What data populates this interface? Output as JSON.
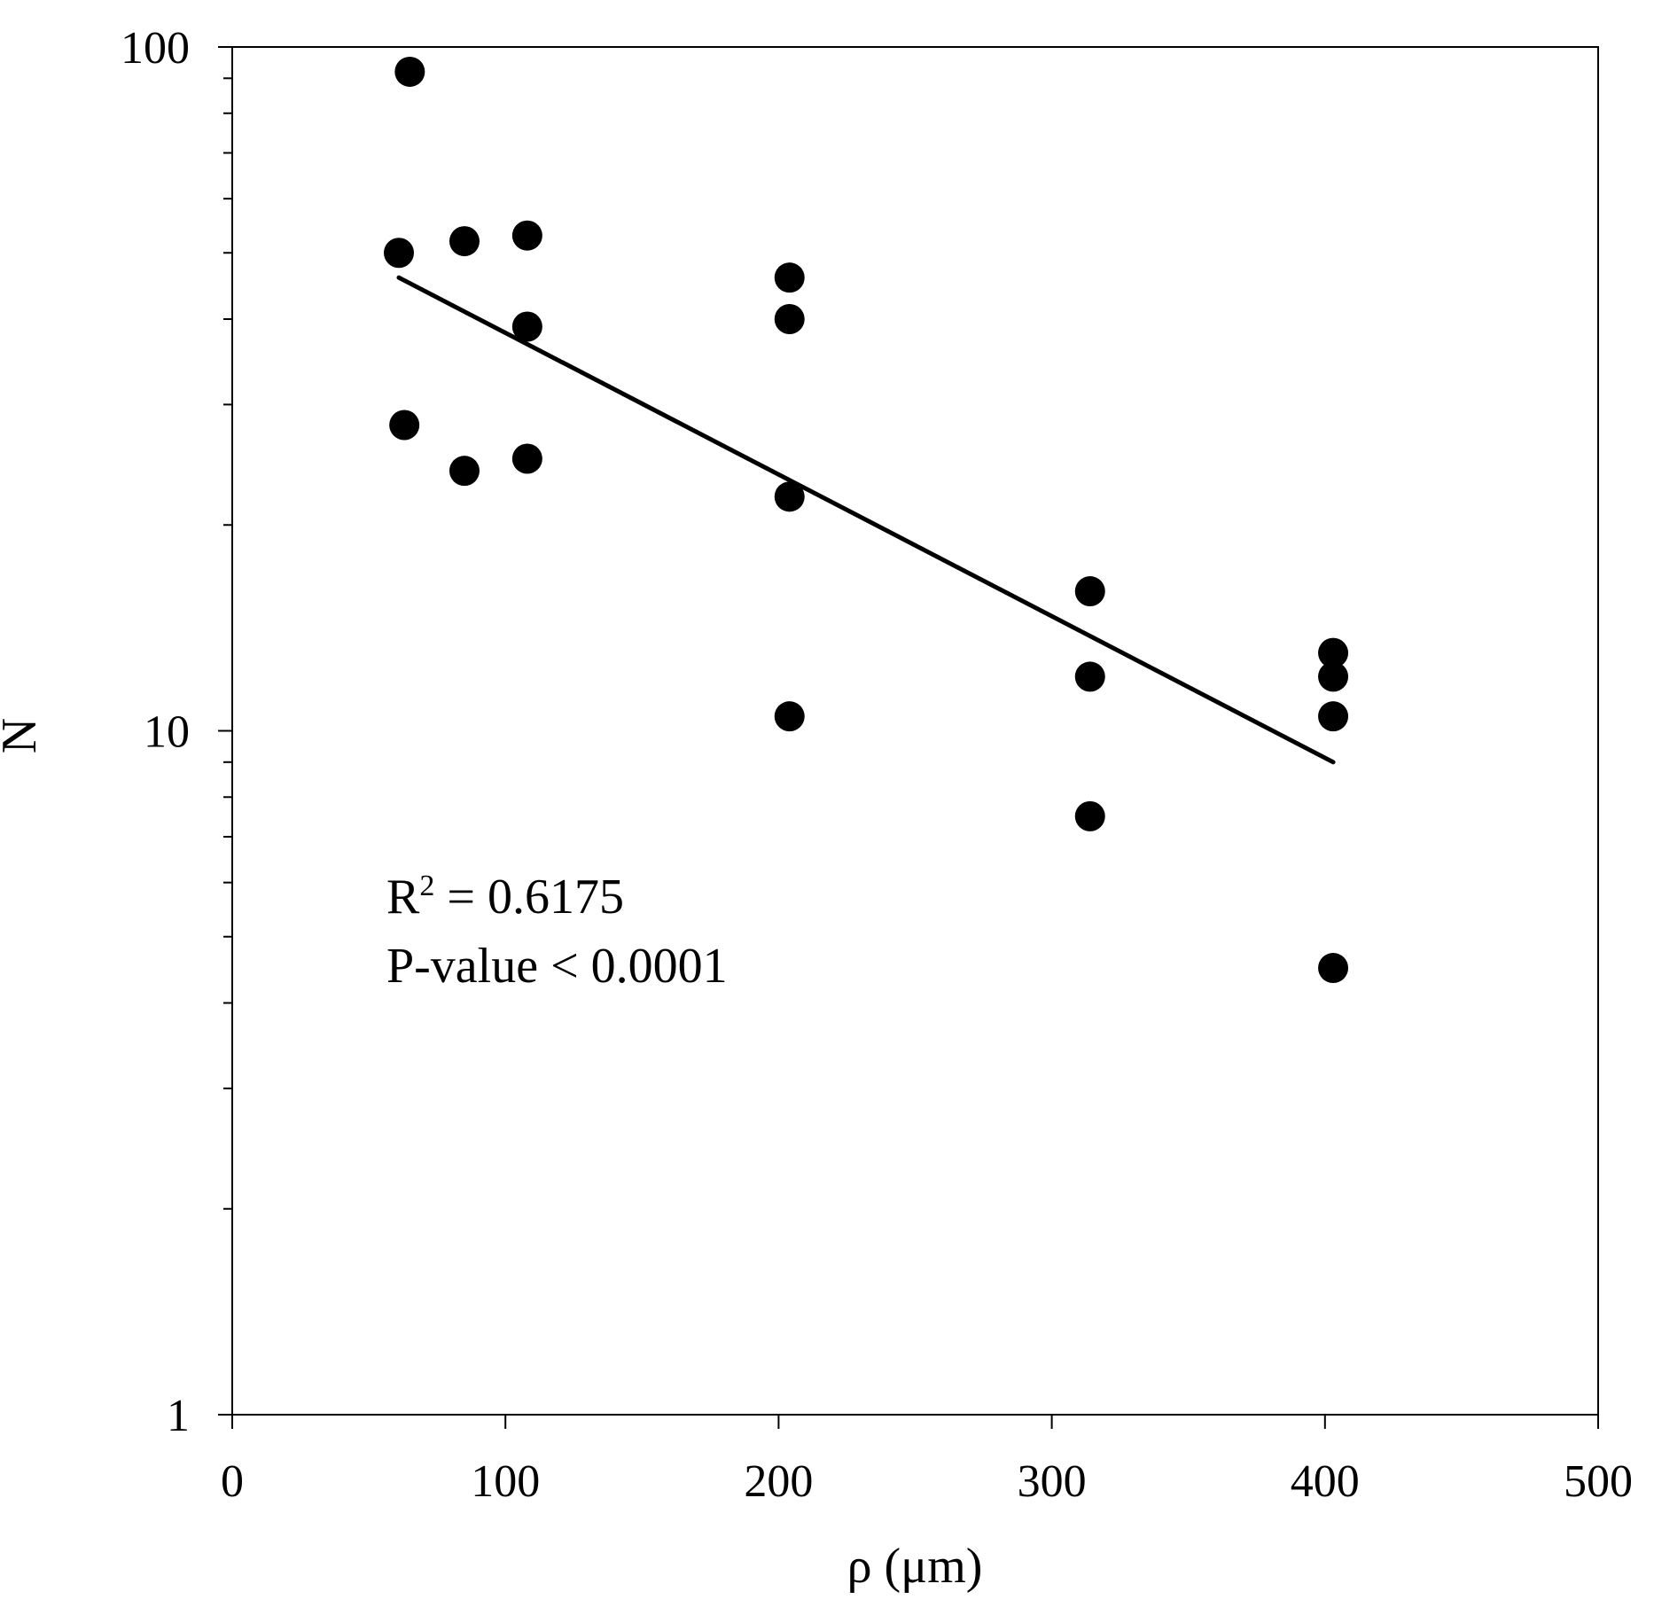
{
  "chart_data": {
    "type": "scatter",
    "xlabel": "ρ (μm)",
    "ylabel": "N",
    "xlim": [
      0,
      500
    ],
    "ylim": [
      1,
      100
    ],
    "yscale": "log",
    "grid": false,
    "x_ticks": [
      "0",
      "100",
      "200",
      "300",
      "400",
      "500"
    ],
    "y_ticks": [
      "1",
      "10",
      "100"
    ],
    "points": [
      {
        "x": 65,
        "y": 92
      },
      {
        "x": 61,
        "y": 50
      },
      {
        "x": 85,
        "y": 52
      },
      {
        "x": 108,
        "y": 53
      },
      {
        "x": 108,
        "y": 39
      },
      {
        "x": 63,
        "y": 28
      },
      {
        "x": 85,
        "y": 24
      },
      {
        "x": 108,
        "y": 25
      },
      {
        "x": 204,
        "y": 46
      },
      {
        "x": 204,
        "y": 40
      },
      {
        "x": 204,
        "y": 22
      },
      {
        "x": 204,
        "y": 10.5
      },
      {
        "x": 314,
        "y": 16
      },
      {
        "x": 314,
        "y": 12
      },
      {
        "x": 314,
        "y": 7.5
      },
      {
        "x": 403,
        "y": 13
      },
      {
        "x": 403,
        "y": 12
      },
      {
        "x": 403,
        "y": 10.5
      },
      {
        "x": 403,
        "y": 4.5
      }
    ],
    "trendline": {
      "x": [
        61,
        403
      ],
      "y": [
        46,
        9
      ]
    },
    "annotations": {
      "r2_prefix": "R",
      "r2_sup": "2",
      "r2_value": " = 0.6175",
      "p_value": "P-value < 0.0001"
    }
  }
}
